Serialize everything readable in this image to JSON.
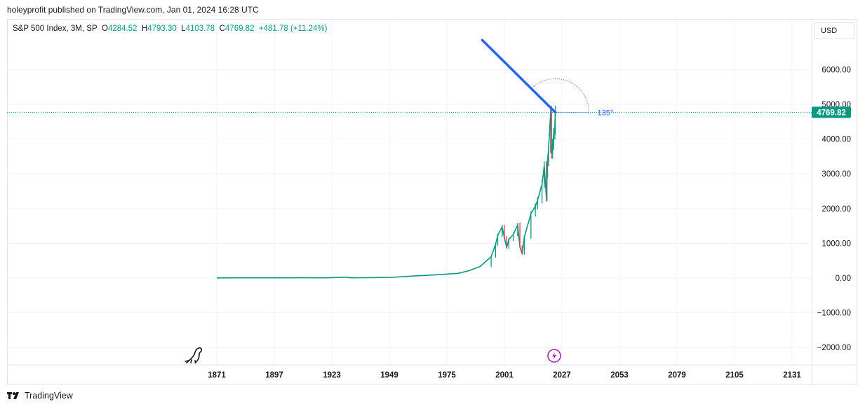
{
  "header": {
    "published": "holeyprofit published on TradingView.com, Jan 01, 2024 16:28 UTC"
  },
  "legend": {
    "symbol": "S&P 500 Index, 3M, SP",
    "open_label": "O",
    "open": "4284.52",
    "high_label": "H",
    "high": "4793.30",
    "low_label": "L",
    "low": "4103.78",
    "close_label": "C",
    "close": "4769.82",
    "change": "+481.78 (+11.24%)"
  },
  "currency_button": "USD",
  "footer": {
    "brand": "TradingView"
  },
  "colors": {
    "up": "#089981",
    "down": "#f23645",
    "drawing": "#2962ff",
    "price_line": "#089981"
  },
  "chart_data": {
    "type": "line",
    "series": [
      {
        "x": [
          1871,
          1880,
          1890,
          1900,
          1910,
          1920,
          1929,
          1932,
          1940,
          1950,
          1960,
          1970,
          1980,
          1985,
          1990,
          1995,
          1997,
          1998,
          2000,
          2001,
          2002,
          2003,
          2005,
          2007,
          2008,
          2009,
          2010,
          2013,
          2015,
          2016,
          2018,
          2019,
          2020,
          2020.25,
          2020.5,
          2021,
          2021.9,
          2022.3,
          2022.8,
          2023.3,
          2023.8,
          2024
        ],
        "y": [
          4.4,
          5.2,
          6,
          6.9,
          9,
          7,
          24,
          7,
          12,
          20,
          58,
          92,
          135,
          211,
          330,
          615,
          970,
          1230,
          1470,
          1160,
          880,
          1110,
          1250,
          1530,
          900,
          700,
          1180,
          1850,
          2070,
          2240,
          2700,
          3230,
          2300,
          3000,
          3360,
          3760,
          4760,
          3580,
          3850,
          4150,
          4290,
          4769.82
        ]
      }
    ],
    "x_ticks": [
      "1871",
      "1897",
      "1923",
      "1949",
      "1975",
      "2001",
      "2027",
      "2053",
      "2079",
      "2105",
      "2131"
    ],
    "y_ticks": [
      "6000.00",
      "5000.00",
      "4000.00",
      "3000.00",
      "2000.00",
      "1000.00",
      "0.00",
      "−1000.00",
      "−2000.00"
    ],
    "last_price_label": "4769.82",
    "trend_line": {
      "from": {
        "x": 1991,
        "y": 6850
      },
      "to": {
        "x": 2024,
        "y": 4769.82
      },
      "angle_label": "135°"
    },
    "grid": true
  }
}
